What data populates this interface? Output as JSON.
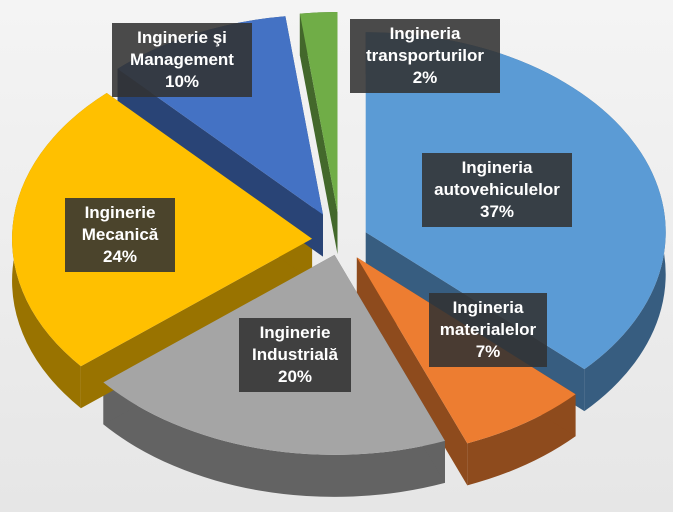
{
  "chart_data": {
    "type": "pie",
    "categories": [
      "Ingineria autovehiculelor",
      "Ingineria materialelor",
      "Inginerie Industrială",
      "Inginerie Mecanică",
      "Inginerie şi Management",
      "Ingineria transporturilor"
    ],
    "values": [
      37,
      7,
      20,
      24,
      10,
      2
    ],
    "value_labels": [
      "37%",
      "7%",
      "20%",
      "24%",
      "10%",
      "2%"
    ],
    "colors": [
      "#5b9bd5",
      "#ed7d31",
      "#a5a5a5",
      "#ffc000",
      "#4472c4",
      "#70ad47"
    ]
  }
}
